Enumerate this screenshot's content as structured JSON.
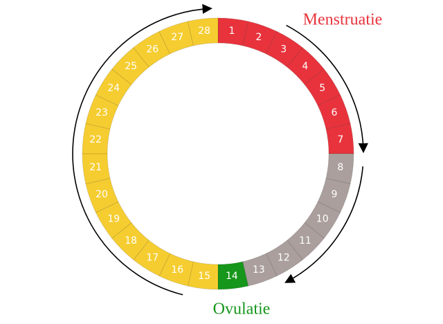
{
  "labels": {
    "menstruation": "Menstruatie",
    "ovulation": "Ovulatie"
  },
  "segments": [
    {
      "label": 1,
      "color": "#e8333c"
    },
    {
      "label": 2,
      "color": "#e8333c"
    },
    {
      "label": 3,
      "color": "#e8333c"
    },
    {
      "label": 4,
      "color": "#e8333c"
    },
    {
      "label": 5,
      "color": "#e8333c"
    },
    {
      "label": 6,
      "color": "#e8333c"
    },
    {
      "label": 7,
      "color": "#e8333c"
    },
    {
      "label": 8,
      "color": "#aa9f9c"
    },
    {
      "label": 9,
      "color": "#aa9f9c"
    },
    {
      "label": 10,
      "color": "#aa9f9c"
    },
    {
      "label": 11,
      "color": "#aa9f9c"
    },
    {
      "label": 12,
      "color": "#aa9f9c"
    },
    {
      "label": 13,
      "color": "#aa9f9c"
    },
    {
      "label": 14,
      "color": "#16961b"
    },
    {
      "label": 15,
      "color": "#f6cd30"
    },
    {
      "label": 16,
      "color": "#f6cd30"
    },
    {
      "label": 17,
      "color": "#f6cd30"
    },
    {
      "label": 18,
      "color": "#f6cd30"
    },
    {
      "label": 19,
      "color": "#f6cd30"
    },
    {
      "label": 20,
      "color": "#f6cd30"
    },
    {
      "label": 21,
      "color": "#f6cd30"
    },
    {
      "label": 22,
      "color": "#f6cd30"
    },
    {
      "label": 23,
      "color": "#f6cd30"
    },
    {
      "label": 24,
      "color": "#f6cd30"
    },
    {
      "label": 25,
      "color": "#f6cd30"
    },
    {
      "label": 26,
      "color": "#f6cd30"
    },
    {
      "label": 27,
      "color": "#f6cd30"
    },
    {
      "label": 28,
      "color": "#f6cd30"
    }
  ]
}
